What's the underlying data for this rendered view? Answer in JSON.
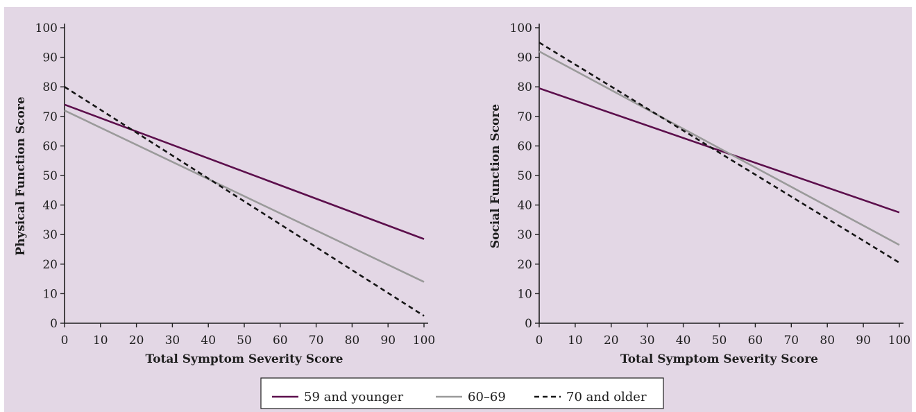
{
  "colors": {
    "background": "#e3d7e5",
    "series_59_and_younger": "#5c0f4c",
    "series_60_69": "#9a9a9a",
    "series_70_and_older": "#151515"
  },
  "legend": {
    "items": [
      {
        "label": "59 and younger",
        "color": "#5c0f4c",
        "style": "solid"
      },
      {
        "label": "60–69",
        "color": "#9a9a9a",
        "style": "solid"
      },
      {
        "label": "70 and older",
        "color": "#151515",
        "style": "dashed"
      }
    ],
    "placement": "bottom-center"
  },
  "chart_data": [
    {
      "type": "line",
      "title": "",
      "xlabel": "Total Symptom Severity Score",
      "ylabel": "Physical Function Score",
      "xlim": [
        0,
        100
      ],
      "ylim": [
        0,
        100
      ],
      "xticks": [
        0,
        10,
        20,
        30,
        40,
        50,
        60,
        70,
        80,
        90,
        100
      ],
      "yticks": [
        0,
        10,
        20,
        30,
        40,
        50,
        60,
        70,
        80,
        90,
        100
      ],
      "grid": false,
      "series": [
        {
          "name": "59 and younger",
          "x": [
            0,
            100
          ],
          "values": [
            74,
            28.5
          ]
        },
        {
          "name": "60–69",
          "x": [
            0,
            100
          ],
          "values": [
            72,
            14
          ]
        },
        {
          "name": "70 and older",
          "x": [
            0,
            100
          ],
          "values": [
            80,
            2.5
          ]
        }
      ]
    },
    {
      "type": "line",
      "title": "",
      "xlabel": "Total Symptom Severity Score",
      "ylabel": "Social Function Score",
      "xlim": [
        0,
        100
      ],
      "ylim": [
        0,
        100
      ],
      "xticks": [
        0,
        10,
        20,
        30,
        40,
        50,
        60,
        70,
        80,
        90,
        100
      ],
      "yticks": [
        0,
        10,
        20,
        30,
        40,
        50,
        60,
        70,
        80,
        90,
        100
      ],
      "grid": false,
      "series": [
        {
          "name": "59 and younger",
          "x": [
            0,
            100
          ],
          "values": [
            79.5,
            37.5
          ]
        },
        {
          "name": "60–69",
          "x": [
            0,
            100
          ],
          "values": [
            92,
            26.5
          ]
        },
        {
          "name": "70 and older",
          "x": [
            0,
            100
          ],
          "values": [
            95,
            20.5
          ]
        }
      ]
    }
  ]
}
